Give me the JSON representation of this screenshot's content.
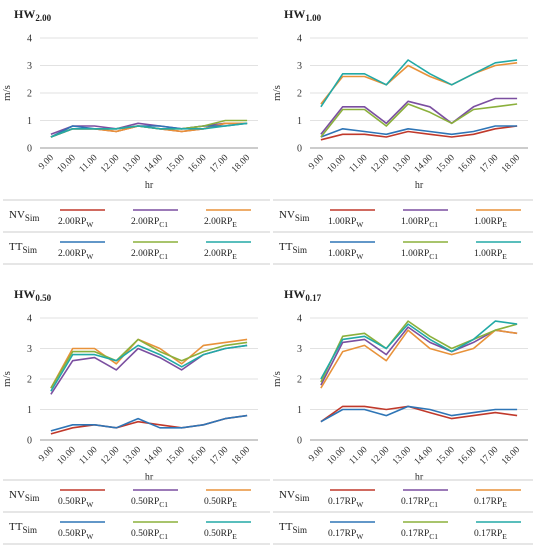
{
  "colors": {
    "NV_W": "#c0392b",
    "NV_C1": "#7b4fa0",
    "NV_E": "#e8923a",
    "TT_W": "#2e75b6",
    "TT_C1": "#8bb03c",
    "TT_E": "#22a9a6"
  },
  "chart_data": [
    {
      "type": "line",
      "title_main": "HW",
      "title_sub": "2.00",
      "xlabel": "hr",
      "ylabel": "m/s",
      "ylim": [
        0,
        4
      ],
      "yticks": [
        "0",
        "1",
        "2",
        "3",
        "4"
      ],
      "categories": [
        "9.00",
        "10.00",
        "11.00",
        "12.00",
        "13.00",
        "14.00",
        "15.00",
        "16.00",
        "17.00",
        "18.00"
      ],
      "series": [
        {
          "key": "NV_W",
          "values": [
            0.4,
            0.7,
            0.7,
            0.6,
            0.8,
            0.7,
            0.6,
            0.7,
            0.9,
            0.9
          ]
        },
        {
          "key": "NV_C1",
          "values": [
            0.5,
            0.8,
            0.8,
            0.7,
            0.9,
            0.8,
            0.7,
            0.8,
            0.9,
            0.9
          ]
        },
        {
          "key": "NV_E",
          "values": [
            0.4,
            0.7,
            0.7,
            0.6,
            0.8,
            0.7,
            0.6,
            0.7,
            0.9,
            0.9
          ]
        },
        {
          "key": "TT_W",
          "values": [
            0.4,
            0.8,
            0.7,
            0.7,
            0.8,
            0.8,
            0.7,
            0.8,
            0.8,
            0.9
          ]
        },
        {
          "key": "TT_C1",
          "values": [
            0.4,
            0.7,
            0.7,
            0.7,
            0.8,
            0.7,
            0.7,
            0.8,
            1.0,
            1.0
          ]
        },
        {
          "key": "TT_E",
          "values": [
            0.4,
            0.7,
            0.7,
            0.7,
            0.8,
            0.7,
            0.7,
            0.7,
            0.8,
            0.9
          ]
        }
      ],
      "legend": {
        "nv_label": "NV",
        "nv_sub": "Sim",
        "tt_label": "TT",
        "tt_sub": "Sim",
        "items": [
          {
            "key": "NV_W",
            "text": "2.00RP",
            "sub": "W"
          },
          {
            "key": "NV_C1",
            "text": "2.00RP",
            "sub": "C1"
          },
          {
            "key": "NV_E",
            "text": "2.00RP",
            "sub": "E"
          },
          {
            "key": "TT_W",
            "text": "2.00RP",
            "sub": "W"
          },
          {
            "key": "TT_C1",
            "text": "2.00RP",
            "sub": "C1"
          },
          {
            "key": "TT_E",
            "text": "2.00RP",
            "sub": "E"
          }
        ]
      }
    },
    {
      "type": "line",
      "title_main": "HW",
      "title_sub": "1.00",
      "xlabel": "hr",
      "ylabel": "m/s",
      "ylim": [
        0,
        4
      ],
      "yticks": [
        "0",
        "1",
        "2",
        "3",
        "4"
      ],
      "categories": [
        "9.00",
        "10.00",
        "11.00",
        "12.00",
        "13.00",
        "14.00",
        "15.00",
        "16.00",
        "17.00",
        "18.00"
      ],
      "series": [
        {
          "key": "NV_W",
          "values": [
            0.3,
            0.5,
            0.5,
            0.4,
            0.6,
            0.5,
            0.4,
            0.5,
            0.7,
            0.8
          ]
        },
        {
          "key": "NV_C1",
          "values": [
            0.5,
            1.5,
            1.5,
            0.9,
            1.7,
            1.5,
            0.9,
            1.5,
            1.8,
            1.8
          ]
        },
        {
          "key": "NV_E",
          "values": [
            1.6,
            2.6,
            2.6,
            2.3,
            3.0,
            2.6,
            2.3,
            2.7,
            3.0,
            3.1
          ]
        },
        {
          "key": "TT_W",
          "values": [
            0.4,
            0.7,
            0.6,
            0.5,
            0.7,
            0.6,
            0.5,
            0.6,
            0.8,
            0.8
          ]
        },
        {
          "key": "TT_C1",
          "values": [
            0.4,
            1.4,
            1.4,
            0.8,
            1.6,
            1.3,
            0.9,
            1.4,
            1.5,
            1.6
          ]
        },
        {
          "key": "TT_E",
          "values": [
            1.5,
            2.7,
            2.7,
            2.3,
            3.2,
            2.7,
            2.3,
            2.7,
            3.1,
            3.2
          ]
        }
      ],
      "legend": {
        "nv_label": "NV",
        "nv_sub": "Sim",
        "tt_label": "TT",
        "tt_sub": "Sim",
        "items": [
          {
            "key": "NV_W",
            "text": "1.00RP",
            "sub": "W"
          },
          {
            "key": "NV_C1",
            "text": "1.00RP",
            "sub": "C1"
          },
          {
            "key": "NV_E",
            "text": "1.00RP",
            "sub": "E"
          },
          {
            "key": "TT_W",
            "text": "1.00RP",
            "sub": "W"
          },
          {
            "key": "TT_C1",
            "text": "1.00RP",
            "sub": "C1"
          },
          {
            "key": "TT_E",
            "text": "1.00RP",
            "sub": "E"
          }
        ]
      }
    },
    {
      "type": "line",
      "title_main": "HW",
      "title_sub": "0.50",
      "xlabel": "hr",
      "ylabel": "m/s",
      "ylim": [
        0,
        4
      ],
      "yticks": [
        "0",
        "1",
        "2",
        "3",
        "4"
      ],
      "categories": [
        "9.00",
        "10.00",
        "11.00",
        "12.00",
        "13.00",
        "14.00",
        "15.00",
        "16.00",
        "17.00",
        "18.00"
      ],
      "series": [
        {
          "key": "NV_W",
          "values": [
            0.2,
            0.4,
            0.5,
            0.4,
            0.6,
            0.5,
            0.4,
            0.5,
            0.7,
            0.8
          ]
        },
        {
          "key": "NV_C1",
          "values": [
            1.5,
            2.6,
            2.7,
            2.3,
            3.0,
            2.7,
            2.3,
            2.8,
            3.0,
            3.1
          ]
        },
        {
          "key": "NV_E",
          "values": [
            1.7,
            3.0,
            3.0,
            2.5,
            3.3,
            3.0,
            2.5,
            3.1,
            3.2,
            3.3
          ]
        },
        {
          "key": "TT_W",
          "values": [
            0.3,
            0.5,
            0.5,
            0.4,
            0.7,
            0.4,
            0.4,
            0.5,
            0.7,
            0.8
          ]
        },
        {
          "key": "TT_C1",
          "values": [
            1.7,
            2.9,
            2.9,
            2.6,
            3.3,
            2.9,
            2.6,
            2.9,
            3.1,
            3.2
          ]
        },
        {
          "key": "TT_E",
          "values": [
            1.6,
            2.8,
            2.8,
            2.6,
            3.1,
            2.8,
            2.4,
            2.8,
            3.0,
            3.1
          ]
        }
      ],
      "legend": {
        "nv_label": "NV",
        "nv_sub": "Sim",
        "tt_label": "TT",
        "tt_sub": "Sim",
        "items": [
          {
            "key": "NV_W",
            "text": "0.50RP",
            "sub": "W"
          },
          {
            "key": "NV_C1",
            "text": "0.50RP",
            "sub": "C1"
          },
          {
            "key": "NV_E",
            "text": "0.50RP",
            "sub": "E"
          },
          {
            "key": "TT_W",
            "text": "0.50RP",
            "sub": "W"
          },
          {
            "key": "TT_C1",
            "text": "0.50RP",
            "sub": "C1"
          },
          {
            "key": "TT_E",
            "text": "0.50RP",
            "sub": "E"
          }
        ]
      }
    },
    {
      "type": "line",
      "title_main": "HW",
      "title_sub": "0.17",
      "xlabel": "hr",
      "ylabel": "m/s",
      "ylim": [
        0,
        4
      ],
      "yticks": [
        "0",
        "1",
        "2",
        "3",
        "4"
      ],
      "categories": [
        "9.00",
        "10.00",
        "11.00",
        "12.00",
        "13.00",
        "14.00",
        "15.00",
        "16.00",
        "17.00",
        "18.00"
      ],
      "series": [
        {
          "key": "NV_W",
          "values": [
            0.6,
            1.1,
            1.1,
            1.0,
            1.1,
            0.9,
            0.7,
            0.8,
            0.9,
            0.8
          ]
        },
        {
          "key": "NV_C1",
          "values": [
            1.8,
            3.2,
            3.3,
            2.8,
            3.7,
            3.2,
            2.9,
            3.2,
            3.6,
            3.5
          ]
        },
        {
          "key": "NV_E",
          "values": [
            1.7,
            2.9,
            3.1,
            2.6,
            3.6,
            3.0,
            2.8,
            3.0,
            3.6,
            3.5
          ]
        },
        {
          "key": "TT_W",
          "values": [
            0.6,
            1.0,
            1.0,
            0.8,
            1.1,
            1.0,
            0.8,
            0.9,
            1.0,
            1.0
          ]
        },
        {
          "key": "TT_C1",
          "values": [
            1.9,
            3.4,
            3.5,
            3.0,
            3.9,
            3.4,
            3.0,
            3.3,
            3.6,
            3.8
          ]
        },
        {
          "key": "TT_E",
          "values": [
            2.0,
            3.3,
            3.4,
            3.0,
            3.8,
            3.3,
            2.9,
            3.3,
            3.9,
            3.8
          ]
        }
      ],
      "legend": {
        "nv_label": "NV",
        "nv_sub": "Sim",
        "tt_label": "TT",
        "tt_sub": "Sim",
        "items": [
          {
            "key": "NV_W",
            "text": "0.17RP",
            "sub": "W"
          },
          {
            "key": "NV_C1",
            "text": "0.17RP",
            "sub": "C1"
          },
          {
            "key": "NV_E",
            "text": "0.17RP",
            "sub": "E"
          },
          {
            "key": "TT_W",
            "text": "0.17RP",
            "sub": "W"
          },
          {
            "key": "TT_C1",
            "text": "0.17RP",
            "sub": "C1"
          },
          {
            "key": "TT_E",
            "text": "0.17RP",
            "sub": "E"
          }
        ]
      }
    }
  ]
}
